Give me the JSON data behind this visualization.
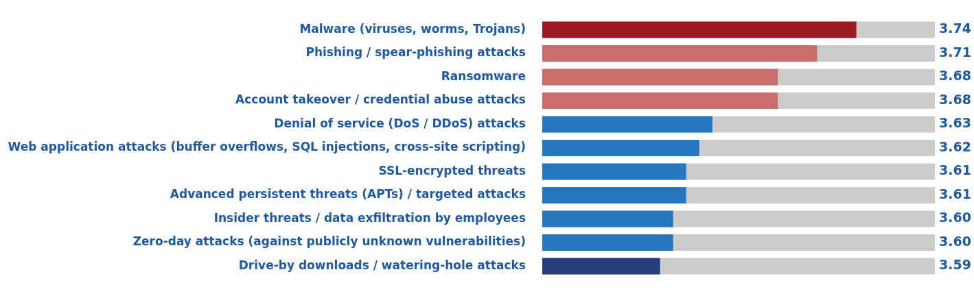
{
  "chart_data": {
    "type": "bar",
    "orientation": "horizontal",
    "categories": [
      "Malware (viruses, worms, Trojans)",
      "Phishing / spear-phishing attacks",
      "Ransomware",
      "Account takeover / credential abuse attacks",
      "Denial of service (DoS / DDoS) attacks",
      "Web application attacks (buffer overflows, SQL injections, cross-site scripting)",
      "SSL-encrypted threats",
      "Advanced persistent threats (APTs) / targeted attacks",
      "Insider threats / data exfiltration by employees",
      "Zero-day attacks (against publicly unknown vulnerabilities)",
      "Drive-by downloads / watering-hole attacks"
    ],
    "values": [
      3.74,
      3.71,
      3.68,
      3.68,
      3.63,
      3.62,
      3.61,
      3.61,
      3.6,
      3.6,
      3.59
    ],
    "value_labels": [
      "3.74",
      "3.71",
      "3.68",
      "3.68",
      "3.63",
      "3.62",
      "3.61",
      "3.61",
      "3.60",
      "3.60",
      "3.59"
    ],
    "colors": [
      "#9b1c22",
      "#cc6d6d",
      "#cc6d6d",
      "#cc6d6d",
      "#2677be",
      "#2677be",
      "#2677be",
      "#2677be",
      "#2677be",
      "#2677be",
      "#263d7c"
    ],
    "xlim": [
      3.5,
      3.8
    ],
    "tick_labels": "y",
    "legend": false
  }
}
